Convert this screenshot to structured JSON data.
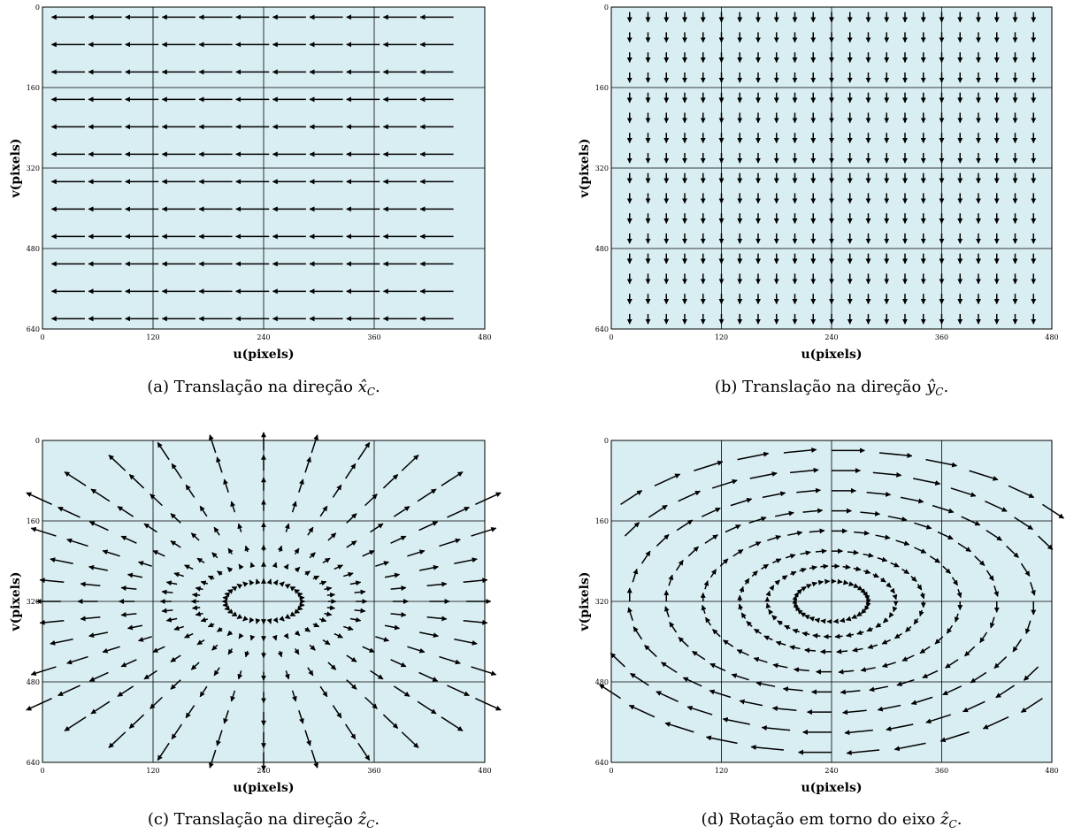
{
  "chart_data": [
    {
      "type": "quiver",
      "panel": "a",
      "field": "translation-x",
      "caption_text": "(a) Translação na direção ",
      "caption_symbol": "x̂",
      "caption_sub": "C",
      "caption_end": ".",
      "xlabel": "u(pixels)",
      "ylabel": "v(pixels)",
      "xlim": [
        0,
        480
      ],
      "ylim": [
        0,
        640
      ],
      "xticks": [
        "0",
        "120",
        "240",
        "360",
        "480"
      ],
      "yticks": [
        "0",
        "160",
        "320",
        "480",
        "640"
      ],
      "grid": true,
      "background": "#d9eef3",
      "arrow_direction": "-x",
      "grid_points": {
        "u_start": 10,
        "u_step": 40,
        "u_count": 12,
        "v_start": 20,
        "v_step": 54.5,
        "v_count": 12
      },
      "vector_length": 36
    },
    {
      "type": "quiver",
      "panel": "b",
      "field": "translation-y",
      "caption_text": "(b) Translação na direção ",
      "caption_symbol": "ŷ",
      "caption_sub": "C",
      "caption_end": ".",
      "xlabel": "u(pixels)",
      "ylabel": "v(pixels)",
      "xlim": [
        0,
        480
      ],
      "ylim": [
        0,
        640
      ],
      "xticks": [
        "0",
        "120",
        "240",
        "360",
        "480"
      ],
      "yticks": [
        "0",
        "160",
        "320",
        "480",
        "640"
      ],
      "grid": true,
      "background": "#d9eef3",
      "arrow_direction": "+v",
      "grid_points": {
        "u_start": 20,
        "u_step": 20,
        "u_count": 23,
        "v_start": 10,
        "v_step": 40,
        "v_count": 16
      },
      "vector_length": 36
    },
    {
      "type": "quiver",
      "panel": "c",
      "field": "translation-z",
      "caption_text": "(c) Translação na direção ",
      "caption_symbol": "ẑ",
      "caption_sub": "C",
      "caption_end": ".",
      "xlabel": "u(pixels)",
      "ylabel": "v(pixels)",
      "xlim": [
        0,
        480
      ],
      "ylim": [
        0,
        640
      ],
      "xticks": [
        "0",
        "120",
        "240",
        "360",
        "480"
      ],
      "yticks": [
        "0",
        "160",
        "320",
        "480",
        "640"
      ],
      "grid": true,
      "background": "#d9eef3",
      "center": [
        240,
        320
      ],
      "arrow_direction": "radial-outward",
      "polar_points": {
        "rings": [
          40,
          70,
          100,
          140,
          180,
          220,
          260,
          300
        ],
        "angles": 36
      },
      "vector_scale": 0.12
    },
    {
      "type": "quiver",
      "panel": "d",
      "field": "rotation-z",
      "caption_text": "(d) Rotação em torno do eixo ",
      "caption_symbol": "ẑ",
      "caption_sub": "C",
      "caption_end": ".",
      "xlabel": "u(pixels)",
      "ylabel": "v(pixels)",
      "xlim": [
        0,
        480
      ],
      "ylim": [
        0,
        640
      ],
      "xticks": [
        "0",
        "120",
        "240",
        "360",
        "480"
      ],
      "yticks": [
        "0",
        "160",
        "320",
        "480",
        "640"
      ],
      "grid": true,
      "background": "#d9eef3",
      "center": [
        240,
        320
      ],
      "arrow_direction": "rotational",
      "polar_points": {
        "rings": [
          40,
          70,
          100,
          140,
          180,
          220,
          260,
          300
        ],
        "angles": 36
      },
      "vector_scale": 0.12
    }
  ]
}
